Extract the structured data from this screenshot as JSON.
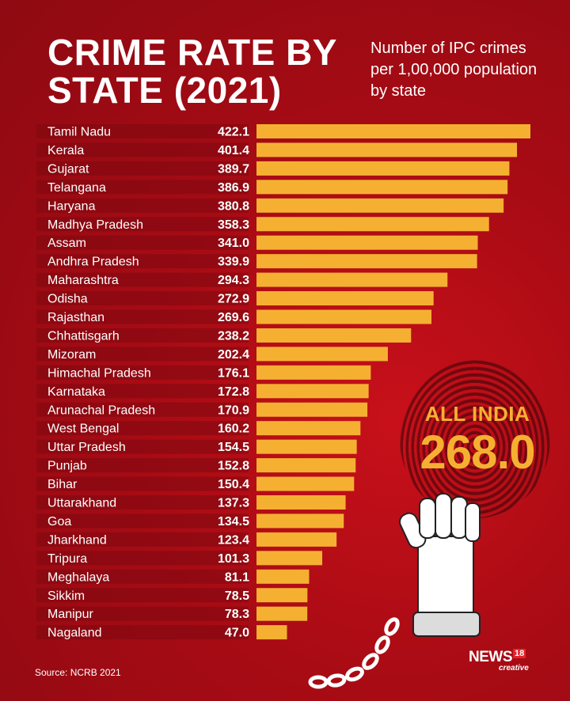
{
  "title": "CRIME RATE BY STATE (2021)",
  "subtitle": "Number of IPC crimes per 1,00,000 population by state",
  "all_india": {
    "label": "ALL INDIA",
    "value": "268.0"
  },
  "source": "Source: NCRB 2021",
  "logo": {
    "word": "NEWS",
    "number": "18",
    "sub": "creative"
  },
  "colors": {
    "background": "#a80b14",
    "bar": "#f5b032",
    "label_band": "#7d0a10",
    "text": "#ffffff"
  },
  "icons": [
    "fingerprint-icon",
    "raised-fist-icon",
    "handcuff-icon",
    "chain-icon"
  ],
  "chart_data": {
    "type": "bar",
    "orientation": "horizontal",
    "categories": [
      "Tamil Nadu",
      "Kerala",
      "Gujarat",
      "Telangana",
      "Haryana",
      "Madhya Pradesh",
      "Assam",
      "Andhra Pradesh",
      "Maharashtra",
      "Odisha",
      "Rajasthan",
      "Chhattisgarh",
      "Mizoram",
      "Himachal Pradesh",
      "Karnataka",
      "Arunachal Pradesh",
      "West Bengal",
      "Uttar Pradesh",
      "Punjab",
      "Bihar",
      "Uttarakhand",
      "Goa",
      "Jharkhand",
      "Tripura",
      "Meghalaya",
      "Sikkim",
      "Manipur",
      "Nagaland"
    ],
    "values": [
      422.1,
      401.4,
      389.7,
      386.9,
      380.8,
      358.3,
      341.0,
      339.9,
      294.3,
      272.9,
      269.6,
      238.2,
      202.4,
      176.1,
      172.8,
      170.9,
      160.2,
      154.5,
      152.8,
      150.4,
      137.3,
      134.5,
      123.4,
      101.3,
      81.1,
      78.5,
      78.3,
      47.0
    ],
    "value_labels": [
      "422.1",
      "401.4",
      "389.7",
      "386.9",
      "380.8",
      "358.3",
      "341.0",
      "339.9",
      "294.3",
      "272.9",
      "269.6",
      "238.2",
      "202.4",
      "176.1",
      "172.8",
      "170.9",
      "160.2",
      "154.5",
      "152.8",
      "150.4",
      "137.3",
      "134.5",
      "123.4",
      "101.3",
      "81.1",
      "78.5",
      "78.3",
      "47.0"
    ],
    "grid": false,
    "legend": "none"
  }
}
